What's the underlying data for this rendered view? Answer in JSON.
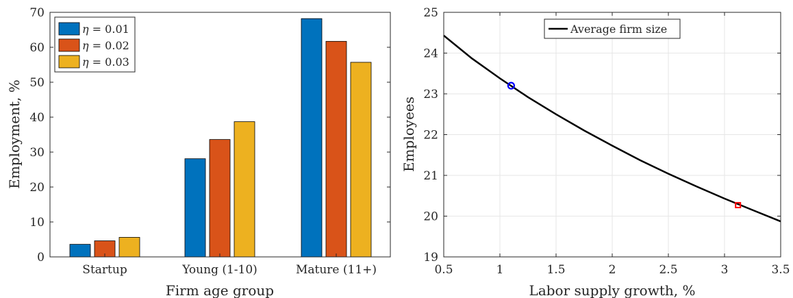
{
  "chart_data": [
    {
      "type": "bar",
      "title": "",
      "xlabel": "Firm age group",
      "ylabel": "Employment, %",
      "ylim": [
        0,
        70
      ],
      "yticks": [
        0,
        10,
        20,
        30,
        40,
        50,
        60,
        70
      ],
      "categories": [
        "Startup",
        "Young (1-10)",
        "Mature (11+)"
      ],
      "series": [
        {
          "name": "η = 0.01",
          "label_var": "η",
          "label_eq": " = 0.01",
          "color": "#0072BD",
          "values": [
            3.6,
            28.1,
            68.2
          ]
        },
        {
          "name": "η = 0.02",
          "label_var": "η",
          "label_eq": " = 0.02",
          "color": "#D95319",
          "values": [
            4.6,
            33.6,
            61.7
          ]
        },
        {
          "name": "η = 0.03",
          "label_var": "η",
          "label_eq": " = 0.03",
          "color": "#EDB120",
          "values": [
            5.6,
            38.7,
            55.7
          ]
        }
      ],
      "legend_placement": "top-left",
      "grid": false
    },
    {
      "type": "line",
      "title": "",
      "xlabel": "Labor supply growth, %",
      "ylabel": "Employees",
      "xlim": [
        0.5,
        3.5
      ],
      "ylim": [
        19,
        25
      ],
      "xticks": [
        0.5,
        1,
        1.5,
        2,
        2.5,
        3,
        3.5
      ],
      "yticks": [
        19,
        20,
        21,
        22,
        23,
        24,
        25
      ],
      "grid": true,
      "legend_placement": "top-center",
      "series": [
        {
          "name": "Average firm size",
          "color": "#000000",
          "x": [
            0.5,
            0.75,
            1.0,
            1.25,
            1.5,
            1.75,
            2.0,
            2.25,
            2.5,
            2.75,
            3.0,
            3.25,
            3.5
          ],
          "y": [
            24.43,
            23.87,
            23.38,
            22.92,
            22.5,
            22.1,
            21.73,
            21.37,
            21.04,
            20.73,
            20.43,
            20.15,
            19.87
          ]
        }
      ],
      "markers": [
        {
          "shape": "circle",
          "color": "#0000FF",
          "x": 1.1,
          "y": 23.2
        },
        {
          "shape": "square",
          "color": "#FF0000",
          "x": 3.12,
          "y": 20.27
        }
      ]
    }
  ]
}
